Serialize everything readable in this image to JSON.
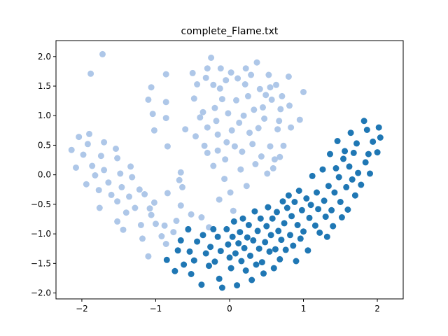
{
  "chart_data": {
    "type": "scatter",
    "title": "complete_Flame.txt",
    "xlabel": "",
    "ylabel": "",
    "xlim": [
      -2.35,
      2.35
    ],
    "ylim": [
      -2.1,
      2.27
    ],
    "x_ticks": [
      -2,
      -1,
      0,
      1,
      2
    ],
    "x_tick_labels": [
      "−2",
      "−1",
      "0",
      "1",
      "2"
    ],
    "y_ticks": [
      -2.0,
      -1.5,
      -1.0,
      -0.5,
      0.0,
      0.5,
      1.0,
      1.5,
      2.0
    ],
    "y_tick_labels": [
      "−2.0",
      "−1.5",
      "−1.0",
      "−0.5",
      "0.0",
      "0.5",
      "1.0",
      "1.5",
      "2.0"
    ],
    "grid": false,
    "legend": "none",
    "series": [
      {
        "color": "#aec7e8",
        "points": [
          [
            -2.14,
            0.42
          ],
          [
            -2.08,
            0.12
          ],
          [
            -2.04,
            0.64
          ],
          [
            -1.98,
            0.34
          ],
          [
            -1.94,
            -0.16
          ],
          [
            -1.92,
            0.52
          ],
          [
            -1.9,
            0.69
          ],
          [
            -1.88,
            1.71
          ],
          [
            -1.86,
            0.15
          ],
          [
            -1.82,
            -0.01
          ],
          [
            -1.77,
            -0.26
          ],
          [
            -1.76,
            -0.56
          ],
          [
            -1.74,
            0.32
          ],
          [
            -1.72,
            2.04
          ],
          [
            -1.7,
            0.55
          ],
          [
            -1.7,
            0.08
          ],
          [
            -1.64,
            -0.13
          ],
          [
            -1.6,
            -0.34
          ],
          [
            -1.54,
            0.44
          ],
          [
            -1.52,
            0.28
          ],
          [
            -1.52,
            -0.45
          ],
          [
            -1.52,
            -0.79
          ],
          [
            -1.48,
            0.02
          ],
          [
            -1.46,
            -0.21
          ],
          [
            -1.44,
            -0.93
          ],
          [
            -1.4,
            -0.64
          ],
          [
            -1.36,
            -0.37
          ],
          [
            -1.34,
            0.14
          ],
          [
            -1.32,
            -0.04
          ],
          [
            -1.28,
            -0.56
          ],
          [
            -1.22,
            -0.25
          ],
          [
            -1.2,
            -0.85
          ],
          [
            -1.18,
            -1.08
          ],
          [
            -1.15,
            -0.33
          ],
          [
            -1.1,
            -1.38
          ],
          [
            -1.08,
            -0.57
          ],
          [
            -1.06,
            -0.68
          ],
          [
            -1.02,
            -0.47
          ],
          [
            -1.0,
            -0.83
          ],
          [
            -1.1,
            1.27
          ],
          [
            -1.06,
            1.48
          ],
          [
            -1.04,
            1.03
          ],
          [
            -1.02,
            0.75
          ],
          [
            -0.92,
            -1.04
          ],
          [
            -0.88,
            -0.86
          ],
          [
            -0.86,
            -1.17
          ],
          [
            -0.84,
            -0.31
          ],
          [
            -0.84,
            0.48
          ],
          [
            -0.86,
            0.96
          ],
          [
            -0.86,
            1.23
          ],
          [
            -0.86,
            1.7
          ],
          [
            -0.76,
            -0.97
          ],
          [
            -0.72,
            -0.78
          ],
          [
            -0.68,
            -0.09
          ],
          [
            -0.66,
            -0.52
          ],
          [
            -0.66,
            0.04
          ],
          [
            -0.64,
            -0.21
          ],
          [
            -0.6,
            0.77
          ],
          [
            -0.56,
            -0.93
          ],
          [
            -0.52,
            -0.67
          ],
          [
            -0.5,
            1.72
          ],
          [
            -0.48,
            1.29
          ],
          [
            -0.46,
            0.65
          ],
          [
            -0.44,
            1.53
          ],
          [
            -0.4,
            0.97
          ],
          [
            -0.38,
            -0.72
          ],
          [
            -0.36,
            1.06
          ],
          [
            -0.34,
            0.49
          ],
          [
            -0.32,
            1.64
          ],
          [
            -0.3,
            0.8
          ],
          [
            -0.3,
            0.37
          ],
          [
            -0.28,
            -0.89
          ],
          [
            -0.22,
            1.52
          ],
          [
            -0.22,
            0.15
          ],
          [
            -0.2,
            1.13
          ],
          [
            -0.18,
            0.91
          ],
          [
            -0.16,
            0.68
          ],
          [
            -0.16,
            0.41
          ],
          [
            -0.14,
            -0.42
          ],
          [
            -0.13,
            1.46
          ],
          [
            -0.1,
            1.28
          ],
          [
            -0.07,
            -0.07
          ],
          [
            -0.06,
            0.26
          ],
          [
            -0.04,
            0.55
          ],
          [
            -0.02,
            1.04
          ],
          [
            0.01,
            -0.3
          ],
          [
            0.03,
            0.75
          ],
          [
            0.05,
            -0.61
          ],
          [
            0.07,
            0.48
          ],
          [
            0.09,
            1.26
          ],
          [
            0.11,
            1.63
          ],
          [
            0.13,
            0.88
          ],
          [
            0.15,
            0.09
          ],
          [
            0.17,
            0.39
          ],
          [
            0.19,
            1.0
          ],
          [
            0.21,
            1.53
          ],
          [
            0.23,
            -0.19
          ],
          [
            0.25,
            1.33
          ],
          [
            0.27,
            0.71
          ],
          [
            0.29,
            1.69
          ],
          [
            0.31,
            0.52
          ],
          [
            0.33,
            1.1
          ],
          [
            0.35,
            0.18
          ],
          [
            0.37,
            1.9
          ],
          [
            0.39,
            0.79
          ],
          [
            0.41,
            1.45
          ],
          [
            0.43,
            0.31
          ],
          [
            0.45,
            1.14
          ],
          [
            0.47,
            0.95
          ],
          [
            0.49,
            1.35
          ],
          [
            0.51,
            0.02
          ],
          [
            0.53,
            1.69
          ],
          [
            0.55,
            0.48
          ],
          [
            0.57,
            1.27
          ],
          [
            0.59,
            0.11
          ],
          [
            0.61,
            0.26
          ],
          [
            0.63,
            1.52
          ],
          [
            0.65,
            0.77
          ],
          [
            0.67,
            0.91
          ],
          [
            0.69,
            1.11
          ],
          [
            0.71,
            1.33
          ],
          [
            0.73,
            0.49
          ],
          [
            -0.05,
            1.6
          ],
          [
            -0.12,
            1.8
          ],
          [
            -0.3,
            1.8
          ],
          [
            -0.25,
            1.98
          ],
          [
            0.02,
            1.73
          ],
          [
            0.22,
            1.8
          ],
          [
            0.55,
            1.48
          ],
          [
            0.8,
            1.66
          ],
          [
            0.83,
            0.8
          ],
          [
            0.68,
            0.3
          ],
          [
            0.95,
            0.93
          ],
          [
            1.0,
            1.4
          ],
          [
            0.81,
            1.17
          ]
        ]
      },
      {
        "color": "#1f77b4",
        "points": [
          [
            -0.85,
            -1.44
          ],
          [
            -0.74,
            -1.63
          ],
          [
            -0.7,
            -1.28
          ],
          [
            -0.66,
            -1.11
          ],
          [
            -0.62,
            -1.52
          ],
          [
            -0.56,
            -0.92
          ],
          [
            -0.54,
            -1.3
          ],
          [
            -0.52,
            -1.68
          ],
          [
            -0.48,
            -1.45
          ],
          [
            -0.44,
            -1.13
          ],
          [
            -0.38,
            -1.86
          ],
          [
            -0.36,
            -1.02
          ],
          [
            -0.32,
            -1.33
          ],
          [
            -0.28,
            -1.54
          ],
          [
            -0.26,
            -1.22
          ],
          [
            -0.22,
            -0.92
          ],
          [
            -0.2,
            -1.47
          ],
          [
            -0.16,
            -1.05
          ],
          [
            -0.14,
            -1.76
          ],
          [
            -0.12,
            -1.29
          ],
          [
            -0.1,
            -1.91
          ],
          [
            -0.04,
            -0.92
          ],
          [
            -0.02,
            -1.18
          ],
          [
            0.0,
            -1.4
          ],
          [
            0.02,
            -1.58
          ],
          [
            0.04,
            -1.05
          ],
          [
            0.06,
            -0.79
          ],
          [
            0.08,
            -1.33
          ],
          [
            0.1,
            -1.87
          ],
          [
            0.12,
            -1.16
          ],
          [
            0.14,
            -0.97
          ],
          [
            0.16,
            -1.46
          ],
          [
            0.18,
            -0.74
          ],
          [
            0.2,
            -1.24
          ],
          [
            0.22,
            -1.62
          ],
          [
            0.24,
            -1.06
          ],
          [
            0.26,
            -0.85
          ],
          [
            0.28,
            -1.37
          ],
          [
            0.3,
            -1.78
          ],
          [
            0.32,
            -1.11
          ],
          [
            0.34,
            -0.62
          ],
          [
            0.36,
            -1.52
          ],
          [
            0.38,
            -0.95
          ],
          [
            0.4,
            -1.25
          ],
          [
            0.42,
            -0.74
          ],
          [
            0.44,
            -1.48
          ],
          [
            0.46,
            -1.67
          ],
          [
            0.48,
            -1.14
          ],
          [
            0.5,
            -0.87
          ],
          [
            0.52,
            -0.55
          ],
          [
            0.54,
            -1.3
          ],
          [
            0.56,
            -1.02
          ],
          [
            0.58,
            -0.74
          ],
          [
            0.6,
            -1.58
          ],
          [
            0.62,
            -1.26
          ],
          [
            0.64,
            -0.63
          ],
          [
            0.66,
            -0.95
          ],
          [
            0.68,
            -1.43
          ],
          [
            0.7,
            -1.1
          ],
          [
            0.72,
            -0.45
          ],
          [
            0.74,
            -0.82
          ],
          [
            0.76,
            -1.27
          ],
          [
            0.78,
            -0.56
          ],
          [
            0.8,
            -0.35
          ],
          [
            0.82,
            -1.02
          ],
          [
            0.84,
            -0.7
          ],
          [
            0.86,
            -1.2
          ],
          [
            0.88,
            -0.46
          ],
          [
            0.9,
            -1.46
          ],
          [
            0.92,
            -0.85
          ],
          [
            0.94,
            -0.27
          ],
          [
            0.96,
            -1.08
          ],
          [
            0.98,
            -0.6
          ],
          [
            1.0,
            -0.96
          ],
          [
            1.04,
            -0.4
          ],
          [
            1.06,
            -1.28
          ],
          [
            1.08,
            -0.73
          ],
          [
            1.1,
            -0.51
          ],
          [
            1.12,
            -0.02
          ],
          [
            1.16,
            -0.86
          ],
          [
            1.18,
            -0.3
          ],
          [
            1.2,
            -0.58
          ],
          [
            1.22,
            -0.98
          ],
          [
            1.26,
            0.09
          ],
          [
            1.28,
            -0.44
          ],
          [
            1.3,
            -0.71
          ],
          [
            1.32,
            -1.05
          ],
          [
            1.34,
            -0.19
          ],
          [
            1.36,
            0.35
          ],
          [
            1.38,
            -0.6
          ],
          [
            1.4,
            -0.87
          ],
          [
            1.42,
            -0.3
          ],
          [
            1.44,
            0.11
          ],
          [
            1.46,
            0.57
          ],
          [
            1.48,
            -0.04
          ],
          [
            1.5,
            -0.46
          ],
          [
            1.52,
            -0.72
          ],
          [
            1.54,
            0.27
          ],
          [
            1.56,
            0.4
          ],
          [
            1.58,
            -0.21
          ],
          [
            1.6,
            -0.59
          ],
          [
            1.62,
            0.14
          ],
          [
            1.64,
            0.71
          ],
          [
            1.66,
            -0.08
          ],
          [
            1.68,
            0.37
          ],
          [
            1.7,
            -0.35
          ],
          [
            1.72,
            0.53
          ],
          [
            1.74,
            0.03
          ],
          [
            1.78,
            -0.17
          ],
          [
            1.82,
            0.91
          ],
          [
            1.84,
            0.21
          ],
          [
            1.86,
            0.76
          ],
          [
            1.88,
            0.35
          ],
          [
            1.9,
            0.02
          ],
          [
            1.94,
            0.56
          ],
          [
            2.0,
            0.38
          ],
          [
            2.02,
            0.8
          ],
          [
            2.04,
            0.63
          ]
        ]
      }
    ]
  }
}
